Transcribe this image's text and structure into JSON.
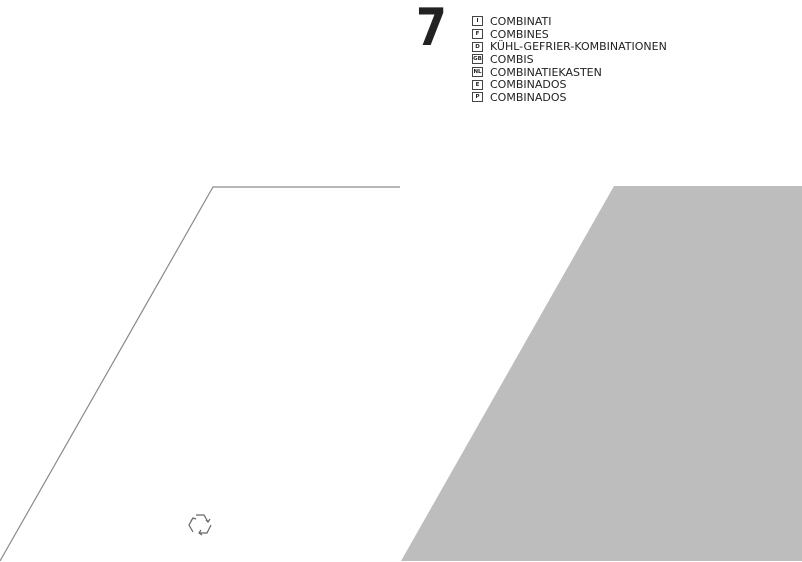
{
  "chapter_number": "7",
  "languages": [
    {
      "code": "I",
      "label": "COMBINATI"
    },
    {
      "code": "F",
      "label": "COMBINES"
    },
    {
      "code": "D",
      "label": "KÜHL-GEFRIER-KOMBINATIONEN"
    },
    {
      "code": "GB",
      "label": "COMBIS"
    },
    {
      "code": "NL",
      "label": "COMBINATIEKASTEN"
    },
    {
      "code": "E",
      "label": "COMBINADOS"
    },
    {
      "code": "P",
      "label": "COMBINADOS"
    }
  ],
  "colors": {
    "gray_panel": "#bdbdbd",
    "line": "#8a8a8a"
  },
  "icons": [
    "recycle-icon"
  ]
}
